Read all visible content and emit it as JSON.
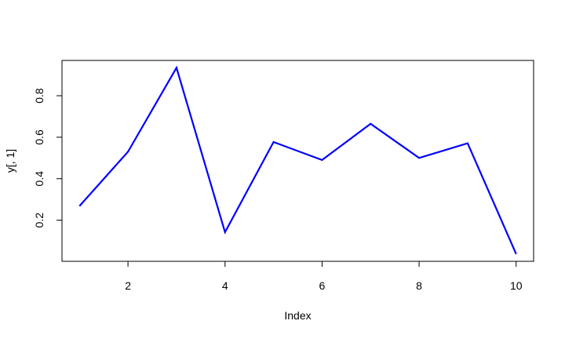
{
  "chart_data": {
    "type": "line",
    "title": "",
    "xlabel": "Index",
    "ylabel": "y[, 1]",
    "x": [
      1,
      2,
      3,
      4,
      5,
      6,
      7,
      8,
      9,
      10
    ],
    "series": [
      {
        "values": [
          0.268,
          0.53,
          0.935,
          0.142,
          0.577,
          0.49,
          0.665,
          0.5,
          0.571,
          0.037
        ],
        "color": "#0000FF"
      }
    ],
    "xlim": [
      0.64,
      10.36
    ],
    "ylim": [
      0.0017,
      0.9703
    ],
    "x_ticks": [
      2,
      4,
      6,
      8,
      10
    ],
    "y_ticks": [
      0.2,
      0.4,
      0.6,
      0.8
    ],
    "x_tick_labels": [
      "2",
      "4",
      "6",
      "8",
      "10"
    ],
    "y_tick_labels": [
      "0.2",
      "0.4",
      "0.6",
      "0.8"
    ],
    "grid": false,
    "legend": "none"
  }
}
